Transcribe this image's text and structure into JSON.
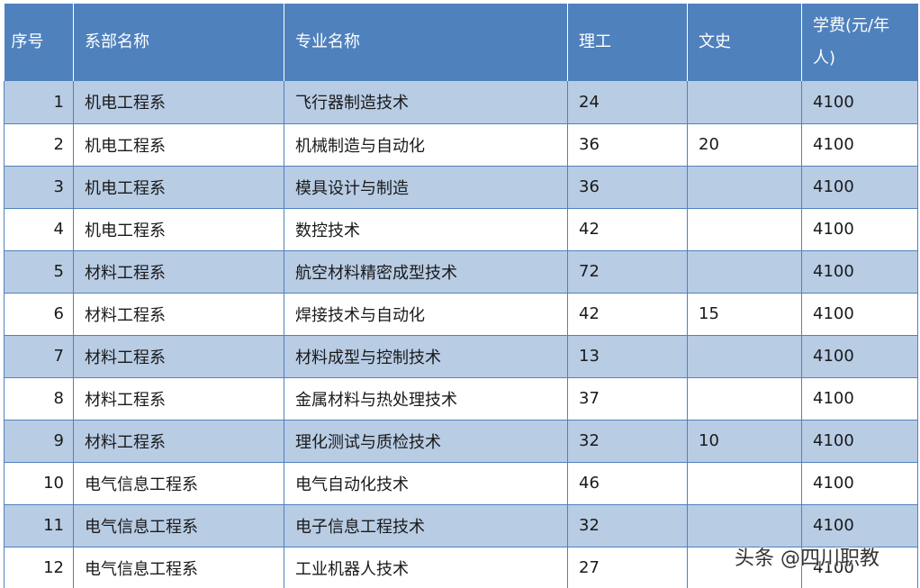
{
  "table": {
    "headers": {
      "index": "序号",
      "department": "系部名称",
      "major": "专业名称",
      "science": "理工",
      "arts": "文史",
      "fee": "学费(元/年人)"
    },
    "rows": [
      {
        "index": "1",
        "department": "机电工程系",
        "major": "飞行器制造技术",
        "science": "24",
        "arts": "",
        "fee": "4100"
      },
      {
        "index": "2",
        "department": "机电工程系",
        "major": "机械制造与自动化",
        "science": "36",
        "arts": "20",
        "fee": "4100"
      },
      {
        "index": "3",
        "department": "机电工程系",
        "major": "模具设计与制造",
        "science": "36",
        "arts": "",
        "fee": "4100"
      },
      {
        "index": "4",
        "department": "机电工程系",
        "major": "数控技术",
        "science": "42",
        "arts": "",
        "fee": "4100"
      },
      {
        "index": "5",
        "department": "材料工程系",
        "major": "航空材料精密成型技术",
        "science": "72",
        "arts": "",
        "fee": "4100"
      },
      {
        "index": "6",
        "department": "材料工程系",
        "major": "焊接技术与自动化",
        "science": "42",
        "arts": "15",
        "fee": "4100"
      },
      {
        "index": "7",
        "department": "材料工程系",
        "major": "材料成型与控制技术",
        "science": "13",
        "arts": "",
        "fee": "4100"
      },
      {
        "index": "8",
        "department": "材料工程系",
        "major": "金属材料与热处理技术",
        "science": "37",
        "arts": "",
        "fee": "4100"
      },
      {
        "index": "9",
        "department": "材料工程系",
        "major": "理化测试与质检技术",
        "science": "32",
        "arts": "10",
        "fee": "4100"
      },
      {
        "index": "10",
        "department": "电气信息工程系",
        "major": "电气自动化技术",
        "science": "46",
        "arts": "",
        "fee": "4100"
      },
      {
        "index": "11",
        "department": "电气信息工程系",
        "major": "电子信息工程技术",
        "science": "32",
        "arts": "",
        "fee": "4100"
      },
      {
        "index": "12",
        "department": "电气信息工程系",
        "major": "工业机器人技术",
        "science": "27",
        "arts": "",
        "fee": "4100"
      }
    ]
  },
  "watermark": "头条 @四川职教",
  "colors": {
    "header_bg": "#4f81bd",
    "band_bg": "#b8cce4",
    "border": "#4f81bd"
  }
}
